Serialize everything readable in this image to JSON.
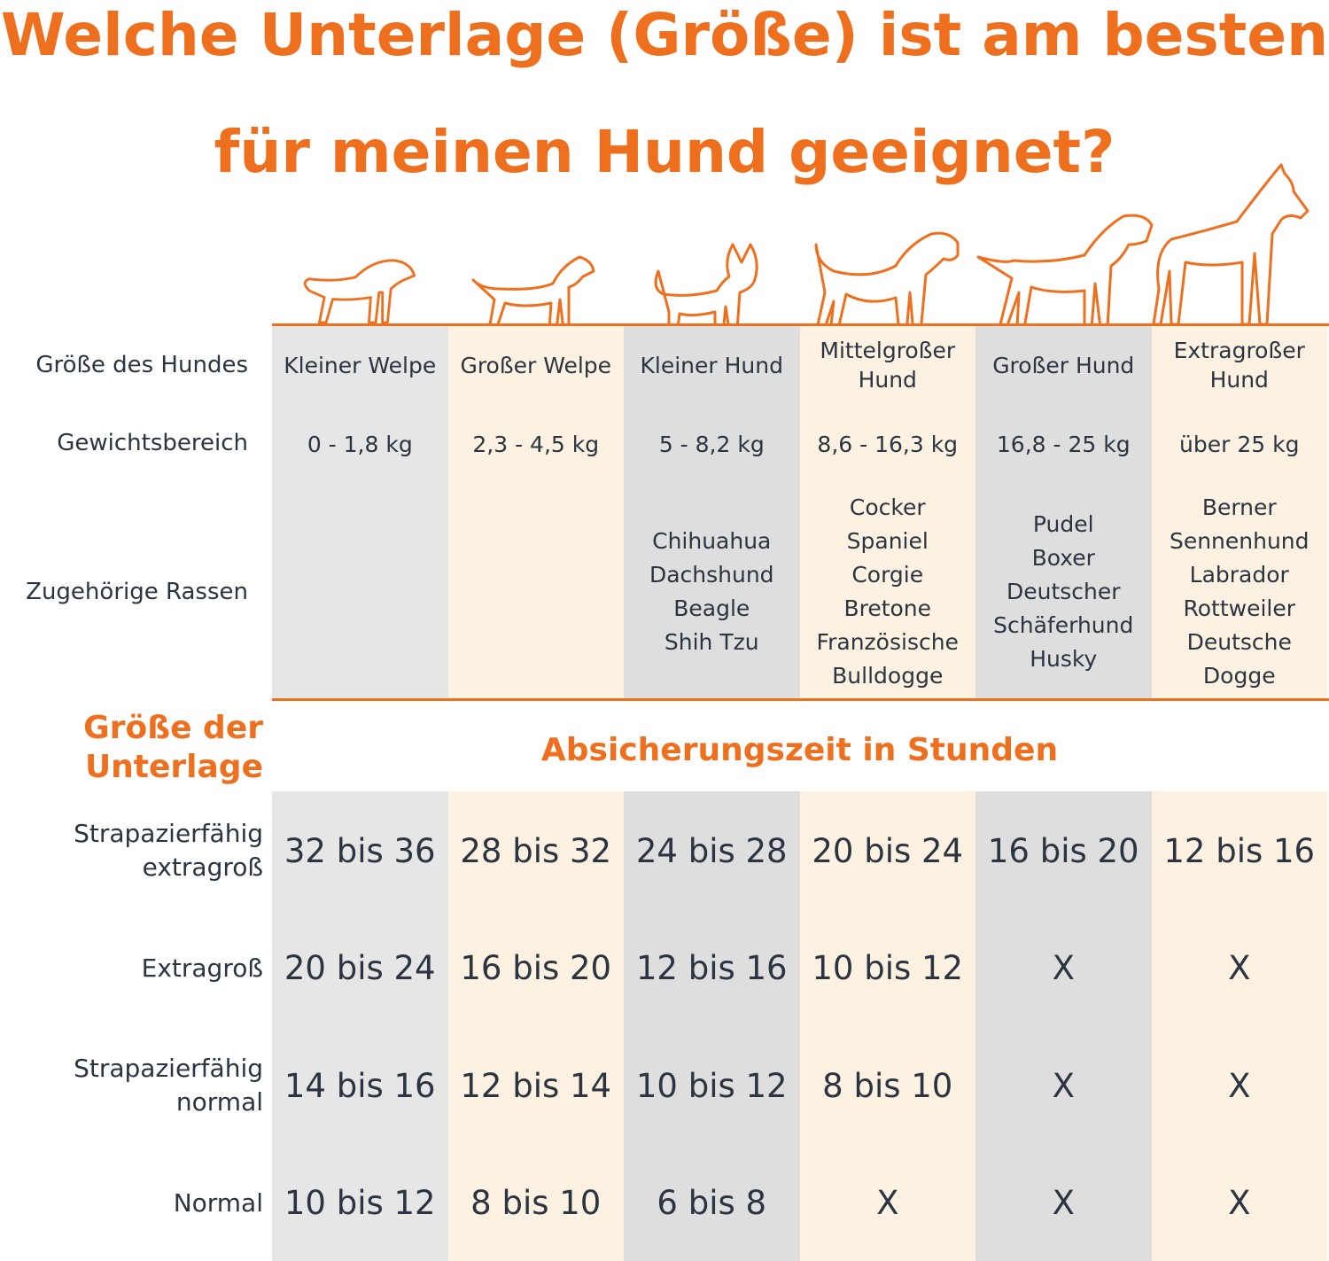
{
  "header": {
    "title_lines": [
      "Welche Unterlage (Größe) ist am besten",
      "für meinen Hund geeignet?"
    ]
  },
  "dog_table": {
    "row_labels": [
      "Größe des Hundes",
      "Gewichtsbereich",
      "Zugehörige Rassen"
    ],
    "sizes": [
      "Kleiner Welpe",
      "Großer Welpe",
      "Kleiner Hund",
      "Mittelgroßer Hund",
      "Großer Hund",
      "Extragroßer Hund"
    ],
    "weights": [
      "0 - 1,8 kg",
      "2,3 - 4,5 kg",
      "5 - 8,2 kg",
      "8,6 - 16,3 kg",
      "16,8 - 25 kg",
      "über 25 kg"
    ],
    "breeds": [
      [],
      [],
      [
        "Chihuahua",
        "Dachshund",
        "Beagle",
        "Shih Tzu"
      ],
      [
        "Cocker Spaniel",
        "Corgie",
        "Bretone",
        "Französische Bulldogge"
      ],
      [
        "Pudel",
        "Boxer",
        "Deutscher Schäferhund",
        "Husky"
      ],
      [
        "Berner Sennenhund",
        "Labrador",
        "Rottweiler",
        "Deutsche Dogge"
      ]
    ]
  },
  "pad_table": {
    "corner_label": "Größe der Unterlage",
    "heading": "Absicherungszeit in Stunden",
    "rows": [
      {
        "label": "Strapazierfähig extragroß",
        "values": [
          "32 bis 36",
          "28 bis 32",
          "24 bis 28",
          "20 bis 24",
          "16 bis 20",
          "12 bis 16"
        ]
      },
      {
        "label": "Extragroß",
        "values": [
          "20 bis 24",
          "16 bis 20",
          "12 bis 16",
          "10 bis 12",
          "X",
          "X"
        ]
      },
      {
        "label": "Strapazierfähig normal",
        "values": [
          "14 bis 16",
          "12 bis 14",
          "10 bis 12",
          "8 bis 10",
          "X",
          "X"
        ]
      },
      {
        "label": "Normal",
        "values": [
          "10 bis 12",
          "8 bis 10",
          "6 bis 8",
          "X",
          "X",
          "X"
        ]
      }
    ]
  }
}
